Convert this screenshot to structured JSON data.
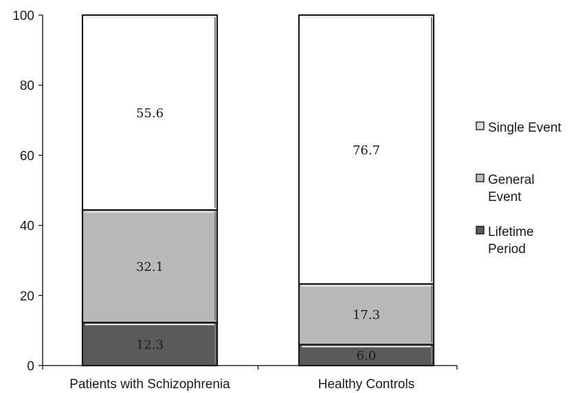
{
  "chart_data": {
    "type": "bar",
    "stacked": true,
    "categories": [
      "Patients with Schizophrenia",
      "Healthy Controls"
    ],
    "series": [
      {
        "name": "Lifetime Period",
        "legend_lines": [
          "Lifetime",
          "Period"
        ],
        "values": [
          12.3,
          6.0
        ],
        "labels": [
          "12.3",
          "6.0"
        ],
        "color": "#5a5a5a"
      },
      {
        "name": "General Event",
        "legend_lines": [
          "General",
          "Event"
        ],
        "values": [
          32.1,
          17.3
        ],
        "labels": [
          "32.1",
          "17.3"
        ],
        "color": "#b9b9b9"
      },
      {
        "name": "Single Event",
        "legend_lines": [
          "Single Event"
        ],
        "values": [
          55.6,
          76.7
        ],
        "labels": [
          "55.6",
          "76.7"
        ],
        "color": "#ffffff"
      }
    ],
    "ylim": [
      0,
      100
    ],
    "yticks": [
      0,
      20,
      40,
      60,
      80,
      100
    ],
    "title": "",
    "xlabel": "",
    "ylabel": "",
    "grid": false,
    "legend_position": "right",
    "legend_order": [
      "Single Event",
      "General Event",
      "Lifetime Period"
    ]
  }
}
